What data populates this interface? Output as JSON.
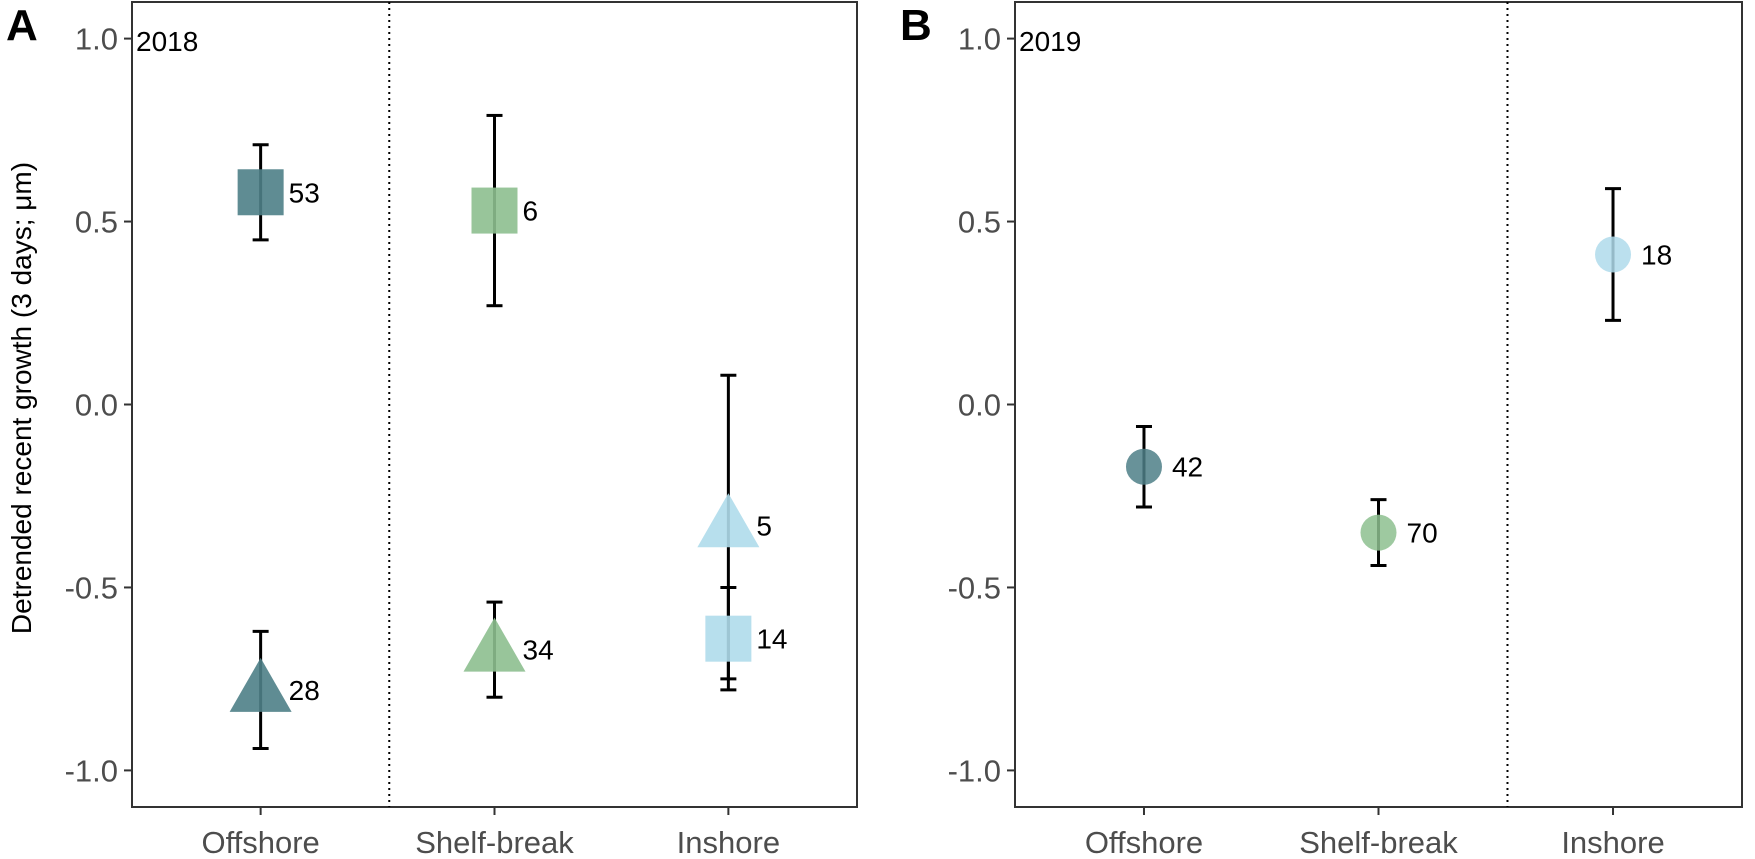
{
  "chart_data": {
    "type": "scatter",
    "ylabel": "Detrended recent growth (3 days; μm)",
    "ylim": [
      -1.1,
      1.1
    ],
    "yticks": [
      "1.0",
      "0.5",
      "0.0",
      "-0.5",
      "-1.0"
    ],
    "ytick_values": [
      1.0,
      0.5,
      0.0,
      -0.5,
      -1.0
    ],
    "categories": [
      "Offshore",
      "Shelf-break",
      "Inshore"
    ],
    "colors": {
      "Offshore": "#4e7f87",
      "Shelf-break": "#8dbf8f",
      "Inshore": "#afdbeb"
    },
    "panels": [
      {
        "tag": "A",
        "year": "2018",
        "divider_at": 1.55,
        "points": [
          {
            "category": "Offshore",
            "shape": "square",
            "y": 0.58,
            "lo": 0.45,
            "hi": 0.71,
            "n": "53"
          },
          {
            "category": "Offshore",
            "shape": "triangle",
            "y": -0.78,
            "lo": -0.94,
            "hi": -0.62,
            "n": "28"
          },
          {
            "category": "Shelf-break",
            "shape": "square",
            "y": 0.53,
            "lo": 0.27,
            "hi": 0.79,
            "n": "6"
          },
          {
            "category": "Shelf-break",
            "shape": "triangle",
            "y": -0.67,
            "lo": -0.8,
            "hi": -0.54,
            "n": "34"
          },
          {
            "category": "Inshore",
            "shape": "triangle",
            "y": -0.33,
            "lo": -0.75,
            "hi": 0.08,
            "n": "5"
          },
          {
            "category": "Inshore",
            "shape": "square",
            "y": -0.64,
            "lo": -0.78,
            "hi": -0.5,
            "n": "14"
          }
        ]
      },
      {
        "tag": "B",
        "year": "2019",
        "divider_at": 2.55,
        "points": [
          {
            "category": "Offshore",
            "shape": "circle",
            "y": -0.17,
            "lo": -0.28,
            "hi": -0.06,
            "n": "42"
          },
          {
            "category": "Shelf-break",
            "shape": "circle",
            "y": -0.35,
            "lo": -0.44,
            "hi": -0.26,
            "n": "70"
          },
          {
            "category": "Inshore",
            "shape": "circle",
            "y": 0.41,
            "lo": 0.23,
            "hi": 0.59,
            "n": "18"
          }
        ]
      }
    ]
  }
}
